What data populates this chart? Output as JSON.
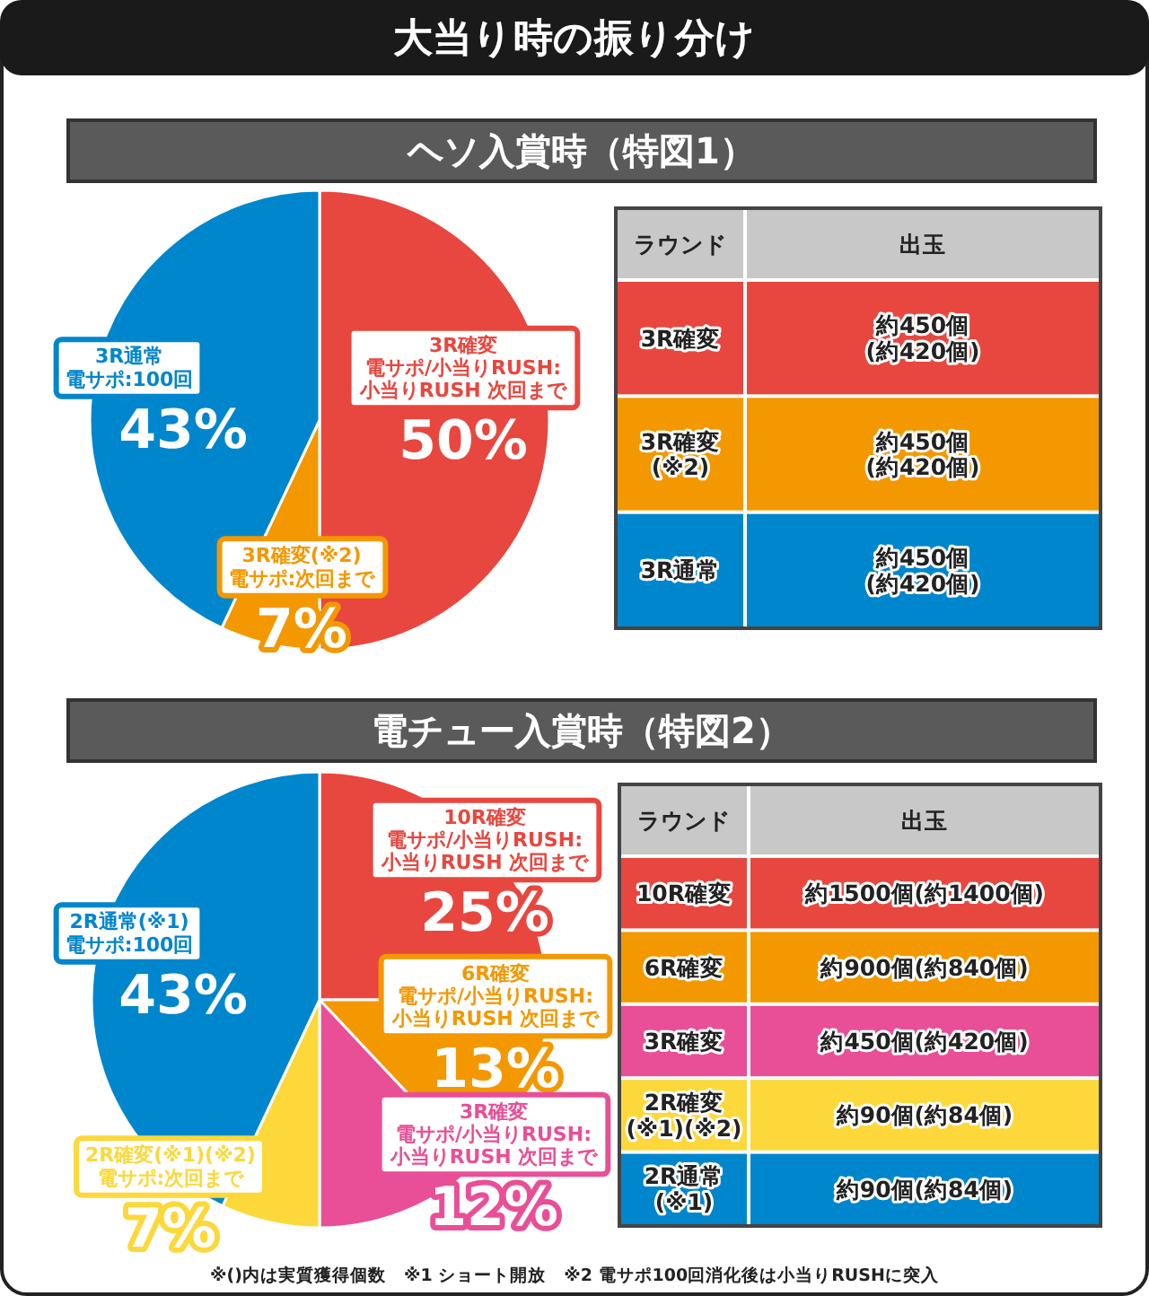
{
  "chart_data": [
    {
      "type": "pie",
      "title": "大当り時の振り分け",
      "subtitle": "ヘソ入賞時（特図1）",
      "categories": [
        "3R確変電サポ/小当りRUSH:小当りRUSH 次回まで",
        "3R確変(※2)電サポ:次回まで",
        "3R通常電サポ:100回"
      ],
      "values": [
        50,
        7,
        43
      ],
      "value_labels": [
        "50%",
        "7%",
        "43%"
      ],
      "colors": [
        "#e8473f",
        "#f39800",
        "#0086cc"
      ]
    },
    {
      "type": "other",
      "colors": [
        "#c8c8c8",
        "#e8473f",
        "#f39800",
        "#0086cc"
      ],
      "annotations": [
        "ラウンド",
        "出玉",
        "3R確変",
        "約450個\n(約420個)",
        "3R確変\n(※2)",
        "約450個\n(約420個)",
        "3R通常",
        "約450個\n(約420個)"
      ]
    },
    {
      "type": "pie",
      "title": "電チュー入賞時（特図2）",
      "categories": [
        "10R確変電サポ/小当りRUSH:小当りRUSH 次回まで",
        "6R確変電サポ/小当りRUSH:小当りRUSH 次回まで",
        "3R確変電サポ/小当りRUSH:小当りRUSH 次回まで",
        "2R確変(※1)(※2)電サポ:次回まで",
        "2R通常(※1)電サポ:100回"
      ],
      "values": [
        25,
        13,
        12,
        7,
        43
      ],
      "value_labels": [
        "25%",
        "13%",
        "12%",
        "7%",
        "43%"
      ],
      "colors": [
        "#e8473f",
        "#f39800",
        "#e94f96",
        "#fcd83a",
        "#0086cc"
      ],
      "annotations": [
        "※()内は実質獲得個数　※1 ショート開放　※2 電サポ100回消化後は小当りRUSHに突入"
      ]
    },
    {
      "type": "other",
      "colors": [
        "#c8c8c8",
        "#e8473f",
        "#f39800",
        "#e94f96",
        "#fcd83a",
        "#0086cc"
      ],
      "annotations": [
        "ラウンド",
        "出玉",
        "10R確変",
        "約1500個(約1400個)",
        "6R確変",
        "約900個(約840個)",
        "3R確変",
        "約450個(約420個)",
        "2R確変\n(※1)(※2)",
        "約90個(約84個)",
        "2R通常\n(※1)",
        "約90個(約84個)"
      ]
    }
  ]
}
